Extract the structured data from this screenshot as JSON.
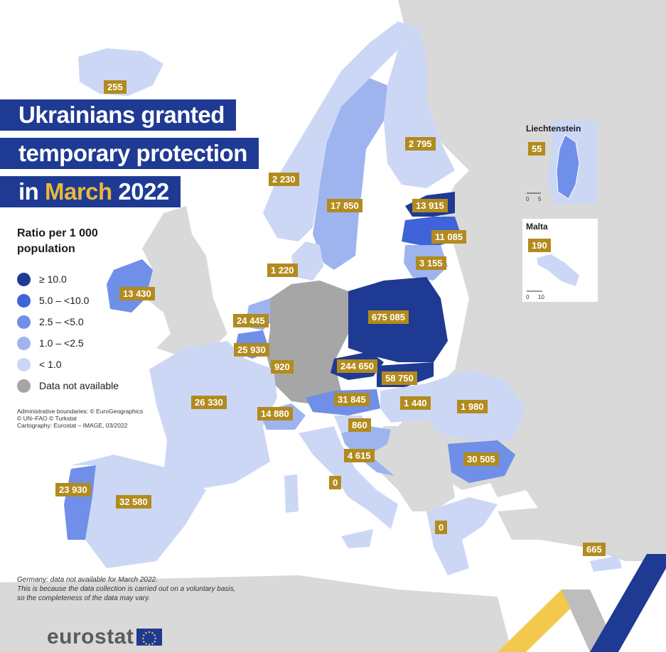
{
  "title": {
    "line1": "Ukrainians granted",
    "line2": "temporary protection",
    "line3_prefix": "in ",
    "line3_highlight": "March",
    "line3_suffix": " 2022"
  },
  "legend": {
    "title": "Ratio per 1 000 population",
    "items": [
      {
        "label": "≥ 10.0",
        "color": "#1f3a93"
      },
      {
        "label": "5.0 – <10.0",
        "color": "#3f63d8"
      },
      {
        "label": "2.5 – <5.0",
        "color": "#6f8fe8"
      },
      {
        "label": "1.0 – <2.5",
        "color": "#9eb4ef"
      },
      {
        "label": "< 1.0",
        "color": "#ccd7f6"
      },
      {
        "label": "Data not available",
        "color": "#a6a6a6"
      }
    ]
  },
  "credits": {
    "line1": "Administrative boundaries: © EuroGeographics",
    "line2": "© UN–FAO © Turkstat",
    "line3": "Cartography: Eurostat – IMAGE, 03/2022"
  },
  "footnote": {
    "line1": "Germany: data not available for March 2022.",
    "line2": "This is because the data collection is carried out on a voluntary basis,",
    "line3": "so the completeness of the data may vary."
  },
  "countries": [
    {
      "id": "iceland",
      "value": "255",
      "class": "< 1.0"
    },
    {
      "id": "norway",
      "value": "2 230",
      "class": "< 1.0"
    },
    {
      "id": "sweden",
      "value": "17 850",
      "class": "1.0 – <2.5"
    },
    {
      "id": "finland",
      "value": "2 795",
      "class": "< 1.0"
    },
    {
      "id": "estonia",
      "value": "13 915",
      "class": "≥ 10.0"
    },
    {
      "id": "latvia",
      "value": "11 085",
      "class": "5.0 – <10.0"
    },
    {
      "id": "lithuania",
      "value": "3 155",
      "class": "1.0 – <2.5"
    },
    {
      "id": "denmark",
      "value": "1 220",
      "class": "< 1.0"
    },
    {
      "id": "ireland",
      "value": "13 430",
      "class": "2.5 – <5.0"
    },
    {
      "id": "netherlands",
      "value": "24 445",
      "class": "1.0 – <2.5"
    },
    {
      "id": "belgium",
      "value": "25 930",
      "class": "2.5 – <5.0"
    },
    {
      "id": "luxembourg",
      "value": "920",
      "class": "1.0 – <2.5"
    },
    {
      "id": "germany",
      "value": "",
      "class": "Data not available"
    },
    {
      "id": "poland",
      "value": "675 085",
      "class": "≥ 10.0"
    },
    {
      "id": "czechia",
      "value": "244 650",
      "class": "≥ 10.0"
    },
    {
      "id": "slovakia",
      "value": "58 750",
      "class": "≥ 10.0"
    },
    {
      "id": "austria",
      "value": "31 845",
      "class": "2.5 – <5.0"
    },
    {
      "id": "hungary",
      "value": "1 440",
      "class": "< 1.0"
    },
    {
      "id": "romania",
      "value": "1 980",
      "class": "< 1.0"
    },
    {
      "id": "france",
      "value": "26 330",
      "class": "< 1.0"
    },
    {
      "id": "switzerland",
      "value": "14 880",
      "class": "1.0 – <2.5"
    },
    {
      "id": "slovenia",
      "value": "860",
      "class": "< 1.0"
    },
    {
      "id": "croatia",
      "value": "4 615",
      "class": "1.0 – <2.5"
    },
    {
      "id": "italy",
      "value": "0",
      "class": "< 1.0"
    },
    {
      "id": "bulgaria",
      "value": "30 505",
      "class": "2.5 – <5.0"
    },
    {
      "id": "portugal",
      "value": "23 930",
      "class": "2.5 – <5.0"
    },
    {
      "id": "spain",
      "value": "32 580",
      "class": "< 1.0"
    },
    {
      "id": "greece",
      "value": "0",
      "class": "< 1.0"
    },
    {
      "id": "cyprus",
      "value": "665",
      "class": "< 1.0"
    }
  ],
  "insets": {
    "liechtenstein": {
      "title": "Liechtenstein",
      "value": "55",
      "scale_start": "0",
      "scale_end": "5"
    },
    "malta": {
      "title": "Malta",
      "value": "190",
      "scale_start": "0",
      "scale_end": "10"
    }
  },
  "logo": {
    "text": "eurostat"
  },
  "colors": {
    "sea": "#ffffff",
    "non_eu": "#d9d9d9",
    "title_bg": "#1f3a93",
    "highlight": "#e8b83a",
    "label_bg": "#b28b1e"
  }
}
